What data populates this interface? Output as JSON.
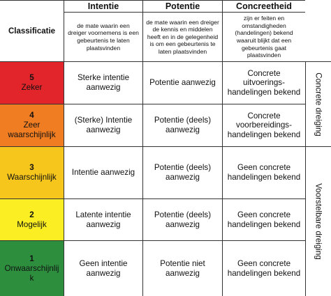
{
  "header": {
    "classification_label": "Classificatie",
    "columns": [
      {
        "title": "Intentie",
        "description": "de mate waarin een dreiger voornemens is een gebeurtenis te laten plaatsvinden"
      },
      {
        "title": "Potentie",
        "description": "de mate waarin een dreiger de kennis en middelen heeft en in de gelegenheid is om een gebeurtenis te laten plaatsvinden"
      },
      {
        "title": "Concreetheid",
        "description": "zijn er feiten en omstandigheden (handelingen) bekend waaruit blijkt dat een gebeurtenis gaat plaatsvinden"
      }
    ]
  },
  "rows": [
    {
      "number": "5",
      "label": "Zeker",
      "color": "#e2252b",
      "intentie": "Sterke intentie aanwezig",
      "potentie": "Potentie aanwezig",
      "concreetheid": "Concrete uitvoerings-handelingen bekend"
    },
    {
      "number": "4",
      "label": "Zeer waarschijnlijk",
      "color": "#f07d22",
      "intentie": "(Sterke) Intentie aanwezig",
      "potentie": "Potentie (deels) aanwezig",
      "concreetheid": "Concrete voorbereidings-handelingen bekend"
    },
    {
      "number": "3",
      "label": "Waarschijnlijk",
      "color": "#f6c61c",
      "intentie": "Intentie aanwezig",
      "potentie": "Potentie (deels) aanwezig",
      "concreetheid": "Geen concrete handelingen bekend"
    },
    {
      "number": "2",
      "label": "Mogelijk",
      "color": "#fbee22",
      "intentie": "Latente intentie aanwezig",
      "potentie": "Potentie (deels) aanwezig",
      "concreetheid": "Geen concrete handelingen bekend"
    },
    {
      "number": "1",
      "label": "Onwaarschijnlijk",
      "color": "#2d8f3e",
      "intentie": "Geen intentie aanwezig",
      "potentie": "Potentie niet aanwezig",
      "concreetheid": "Geen concrete handelingen bekend"
    }
  ],
  "side_labels": {
    "top": "Concrete dreiging",
    "bottom": "Voorstelbare dreiging"
  }
}
